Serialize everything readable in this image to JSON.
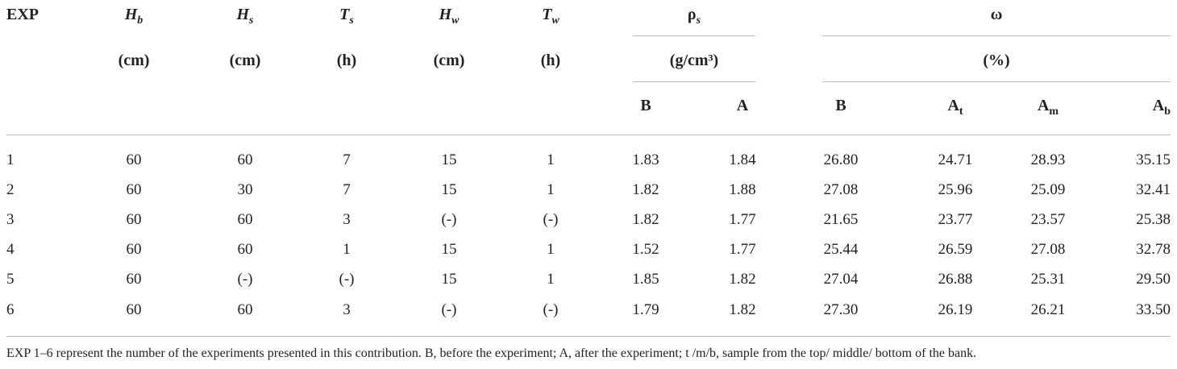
{
  "table": {
    "headers": [
      {
        "text": "EXP"
      },
      {
        "text": "H",
        "sub": "b",
        "unit": "(cm)"
      },
      {
        "text": "H",
        "sub": "s",
        "unit": "(cm)"
      },
      {
        "text": "T",
        "sub": "s",
        "unit": "(h)"
      },
      {
        "text": "H",
        "sub": "w",
        "unit": "(cm)"
      },
      {
        "text": "T",
        "sub": "w",
        "unit": "(h)"
      }
    ],
    "groups": [
      {
        "text": "ρ",
        "sub": "s",
        "unit": "(g/cm³)",
        "columns": [
          {
            "text": "B"
          },
          {
            "text": "A"
          }
        ]
      },
      {
        "text": "ω",
        "unit": "(%)",
        "columns": [
          {
            "text": "B"
          },
          {
            "text": "A",
            "sub": "t"
          },
          {
            "text": "A",
            "sub": "m"
          },
          {
            "text": "A",
            "sub": "b"
          }
        ]
      }
    ],
    "rows": [
      [
        "1",
        "60",
        "60",
        "7",
        "15",
        "1",
        "1.83",
        "1.84",
        "26.80",
        "24.71",
        "28.93",
        "35.15"
      ],
      [
        "2",
        "60",
        "30",
        "7",
        "15",
        "1",
        "1.82",
        "1.88",
        "27.08",
        "25.96",
        "25.09",
        "32.41"
      ],
      [
        "3",
        "60",
        "60",
        "3",
        "(-)",
        "(-)",
        "1.82",
        "1.77",
        "21.65",
        "23.77",
        "23.57",
        "25.38"
      ],
      [
        "4",
        "60",
        "60",
        "1",
        "15",
        "1",
        "1.52",
        "1.77",
        "25.44",
        "26.59",
        "27.08",
        "32.78"
      ],
      [
        "5",
        "60",
        "(-)",
        "(-)",
        "15",
        "1",
        "1.85",
        "1.82",
        "27.04",
        "26.88",
        "25.31",
        "29.50"
      ],
      [
        "6",
        "60",
        "60",
        "3",
        "(-)",
        "(-)",
        "1.79",
        "1.82",
        "27.30",
        "26.19",
        "26.21",
        "33.50"
      ]
    ],
    "footnote": "EXP 1–6 represent the number of the experiments presented in this contribution. B, before the experiment; A, after the experiment; t /m/b, sample from the top/ middle/ bottom of the bank."
  }
}
